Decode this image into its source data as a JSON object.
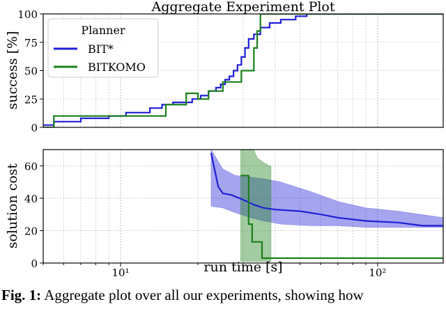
{
  "chart_data": [
    {
      "type": "line",
      "title": "Aggregate Experiment Plot",
      "xlabel": "",
      "ylabel": "success [%]",
      "xscale": "log",
      "xlim": [
        5,
        180
      ],
      "ylim": [
        0,
        100
      ],
      "yticks": [
        0,
        25,
        50,
        75,
        100
      ],
      "grid": true,
      "legend": {
        "title": "Planner",
        "placement": "upper-left"
      },
      "series": [
        {
          "name": "BIT*",
          "color": "#1f1fd6",
          "points": [
            [
              5,
              2
            ],
            [
              5.5,
              2
            ],
            [
              5.5,
              5
            ],
            [
              7,
              5
            ],
            [
              7,
              8
            ],
            [
              9,
              8
            ],
            [
              9,
              10
            ],
            [
              10.5,
              10
            ],
            [
              10.5,
              13
            ],
            [
              13,
              13
            ],
            [
              13,
              17
            ],
            [
              14.5,
              17
            ],
            [
              14.5,
              20
            ],
            [
              16,
              20
            ],
            [
              16,
              22
            ],
            [
              19,
              22
            ],
            [
              19,
              25
            ],
            [
              20.5,
              25
            ],
            [
              20.5,
              28
            ],
            [
              22,
              28
            ],
            [
              22,
              32
            ],
            [
              23.5,
              32
            ],
            [
              23.5,
              35
            ],
            [
              24.5,
              35
            ],
            [
              24.5,
              38
            ],
            [
              25.5,
              38
            ],
            [
              25.5,
              42
            ],
            [
              26.5,
              42
            ],
            [
              26.5,
              45
            ],
            [
              27.5,
              45
            ],
            [
              27.5,
              50
            ],
            [
              28.5,
              50
            ],
            [
              28.5,
              55
            ],
            [
              29.5,
              55
            ],
            [
              29.5,
              62
            ],
            [
              30.5,
              62
            ],
            [
              30.5,
              70
            ],
            [
              31.5,
              70
            ],
            [
              31.5,
              78
            ],
            [
              33,
              78
            ],
            [
              33,
              82
            ],
            [
              35,
              82
            ],
            [
              35,
              88
            ],
            [
              38,
              88
            ],
            [
              38,
              92
            ],
            [
              42,
              92
            ],
            [
              42,
              95
            ],
            [
              48,
              95
            ],
            [
              48,
              98
            ],
            [
              53,
              98
            ],
            [
              53,
              100
            ],
            [
              180,
              100
            ]
          ]
        },
        {
          "name": "BITKOMO",
          "color": "#1a7f1a",
          "points": [
            [
              5,
              0
            ],
            [
              5.5,
              0
            ],
            [
              5.5,
              10
            ],
            [
              15,
              10
            ],
            [
              15,
              20
            ],
            [
              18,
              20
            ],
            [
              18,
              30
            ],
            [
              20,
              30
            ],
            [
              20,
              25
            ],
            [
              22,
              25
            ],
            [
              22,
              32
            ],
            [
              25,
              32
            ],
            [
              25,
              40
            ],
            [
              29.5,
              40
            ],
            [
              29.5,
              50
            ],
            [
              33,
              50
            ],
            [
              33,
              70
            ],
            [
              34,
              70
            ],
            [
              34,
              85
            ],
            [
              35,
              85
            ],
            [
              35,
              100
            ],
            [
              180,
              100
            ]
          ]
        }
      ]
    },
    {
      "type": "line",
      "xlabel": "run time [s]",
      "ylabel": "solution cost",
      "xscale": "log",
      "xlim": [
        5,
        180
      ],
      "ylim": [
        0,
        70
      ],
      "yticks": [
        0,
        20,
        40,
        60
      ],
      "xticks": [
        {
          "value": 10,
          "label": "10¹"
        },
        {
          "value": 100,
          "label": "10²"
        }
      ],
      "grid": true,
      "series": [
        {
          "name": "BIT*",
          "color": "#1f1fd6",
          "points": [
            [
              22.5,
              68
            ],
            [
              23.2,
              58
            ],
            [
              24,
              47
            ],
            [
              25,
              43
            ],
            [
              27,
              42
            ],
            [
              29,
              40
            ],
            [
              31,
              38
            ],
            [
              33,
              36
            ],
            [
              36,
              34
            ],
            [
              40,
              33
            ],
            [
              50,
              32
            ],
            [
              60,
              30
            ],
            [
              70,
              28
            ],
            [
              90,
              26
            ],
            [
              120,
              25
            ],
            [
              150,
              23
            ],
            [
              180,
              23
            ]
          ],
          "band_upper": [
            [
              22.5,
              70
            ],
            [
              25,
              58
            ],
            [
              28,
              54
            ],
            [
              32,
              53
            ],
            [
              36,
              52
            ],
            [
              42,
              50
            ],
            [
              55,
              44
            ],
            [
              70,
              38
            ],
            [
              90,
              34
            ],
            [
              120,
              32
            ],
            [
              180,
              28
            ]
          ],
          "band_lower": [
            [
              22.5,
              35
            ],
            [
              25,
              34
            ],
            [
              28,
              31
            ],
            [
              32,
              28
            ],
            [
              36,
              26
            ],
            [
              42,
              24
            ],
            [
              55,
              23
            ],
            [
              70,
              23
            ],
            [
              90,
              22
            ],
            [
              120,
              22
            ],
            [
              180,
              22
            ]
          ]
        },
        {
          "name": "BITKOMO",
          "color": "#1a7f1a",
          "points": [
            [
              29.3,
              54
            ],
            [
              31.5,
              54
            ],
            [
              31.5,
              24
            ],
            [
              32.5,
              24
            ],
            [
              32.5,
              13
            ],
            [
              35.5,
              13
            ],
            [
              35.5,
              3
            ],
            [
              180,
              3
            ]
          ],
          "band_upper": [
            [
              29.3,
              70
            ],
            [
              33,
              70
            ],
            [
              34,
              65
            ],
            [
              36,
              62
            ],
            [
              38,
              60
            ],
            [
              38.5,
              60
            ]
          ],
          "band_lower": [
            [
              29.3,
              1
            ],
            [
              33,
              1
            ],
            [
              36,
              1
            ],
            [
              38,
              1
            ],
            [
              38.5,
              1
            ]
          ]
        }
      ]
    }
  ],
  "caption": {
    "label": "Fig. 1:",
    "text": " Aggregate plot over all our experiments, showing how"
  }
}
